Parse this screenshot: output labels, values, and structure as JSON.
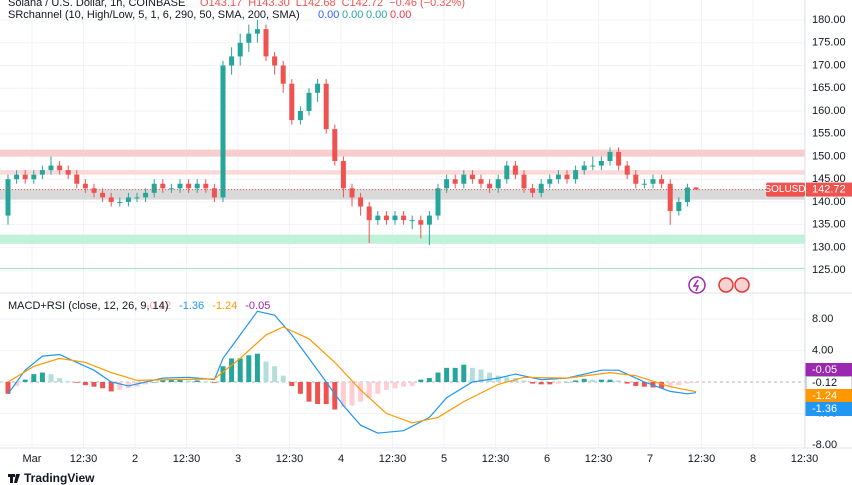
{
  "chart_data": {
    "type": "candlestick",
    "title": "Solana / U.S. Dollar, 1h, COINBASE",
    "ohlc_text": [
      "O143.17",
      "H143.30",
      "L142.68",
      "C142.72",
      "−0.46 (−0.32%)"
    ],
    "indicator": "SRchannel (10, High/Low, 5, 1, 6, 290, 50, SMA, 200, SMA)",
    "indicator_values": [
      {
        "value": 0,
        "label": "0.00",
        "color": "#2962ff"
      },
      {
        "value": 0,
        "label": "0.00",
        "color": "#26a69a"
      },
      {
        "value": 0,
        "label": "0.00",
        "color": "#26a69a"
      },
      {
        "value": 0,
        "label": "0.00",
        "color": "#f23645"
      }
    ],
    "symbol": "SOLUSD",
    "last_price": 142.72,
    "up_color": "#26a69a",
    "down_color": "#ef5350",
    "open": [
      137,
      145,
      146,
      145,
      146,
      147,
      148,
      147,
      146,
      144,
      143,
      142,
      141,
      140,
      140,
      141,
      141,
      142,
      144,
      143,
      143,
      144,
      143,
      144,
      143,
      141,
      170,
      172,
      175,
      177,
      178,
      172,
      170,
      166,
      158,
      160,
      164,
      166,
      156,
      149,
      143,
      141,
      139,
      136,
      137,
      136,
      137,
      136,
      136,
      135,
      137,
      143,
      145,
      144,
      146,
      145,
      144,
      143,
      145,
      148,
      146,
      143,
      142,
      144,
      145,
      146,
      145,
      147,
      148,
      148,
      149,
      151,
      148,
      146,
      144,
      144,
      145,
      144,
      138,
      140,
      143.17
    ],
    "high": [
      146,
      147,
      147,
      147,
      148,
      150,
      149,
      148,
      147,
      145,
      144,
      143,
      142,
      141,
      142,
      142,
      143,
      145,
      145,
      144,
      145,
      145,
      145,
      145,
      144,
      171,
      174,
      177,
      179,
      180,
      179,
      173,
      171,
      167,
      161,
      165,
      167,
      167,
      157,
      150,
      144,
      142,
      140,
      138,
      138,
      138,
      138,
      137,
      137,
      138,
      144,
      146,
      146,
      147,
      147,
      146,
      145,
      146,
      149,
      149,
      147,
      144,
      145,
      146,
      147,
      147,
      148,
      149,
      150,
      150,
      152,
      152,
      149,
      147,
      145,
      146,
      146,
      145,
      141,
      144,
      143.3
    ],
    "low": [
      135,
      144,
      144,
      144,
      145,
      146,
      146,
      145,
      143,
      142,
      141,
      140,
      139,
      139,
      139,
      140,
      140,
      141,
      142,
      142,
      142,
      142,
      142,
      142,
      140,
      140,
      168,
      170,
      173,
      175,
      171,
      168,
      164,
      157,
      157,
      159,
      162,
      155,
      148,
      141,
      139,
      137,
      131,
      135,
      135,
      135,
      135,
      134,
      132,
      130.5,
      136,
      142,
      143,
      143,
      144,
      143,
      142,
      142,
      144,
      145,
      142,
      141,
      141,
      143,
      144,
      144,
      144,
      146,
      147,
      147,
      148,
      147,
      145,
      143,
      143,
      143,
      143,
      135,
      137,
      139,
      142.68
    ],
    "close": [
      145,
      146,
      145,
      146,
      147,
      148,
      147,
      146,
      144,
      143,
      142,
      141,
      140,
      140,
      141,
      141,
      142,
      144,
      143,
      143,
      144,
      143,
      144,
      143,
      141,
      170,
      172,
      175,
      177,
      178,
      172,
      170,
      166,
      158,
      160,
      164,
      166,
      156,
      149,
      143,
      141,
      139,
      136,
      137,
      136,
      137,
      136,
      136,
      135,
      137,
      143,
      145,
      144,
      146,
      145,
      144,
      143,
      145,
      148,
      146,
      143,
      142,
      144,
      145,
      146,
      145,
      147,
      148,
      148,
      149,
      151,
      148,
      146,
      144,
      144,
      145,
      144,
      138,
      140,
      143.17,
      142.72
    ],
    "zones": [
      {
        "from": 150,
        "to": 151.5,
        "color": "#f9cdcd"
      },
      {
        "from": 146,
        "to": 147,
        "color": "#fbd9d9"
      },
      {
        "from": 140.5,
        "to": 142.8,
        "color": "#d9d9d9"
      },
      {
        "from": 130.8,
        "to": 132.8,
        "color": "#bff2d9"
      },
      {
        "from": 125.3,
        "to": 125.5,
        "color": "#9de6c2"
      }
    ],
    "ylim": [
      120.2,
      184.4
    ],
    "yticks": [
      {
        "value": 180,
        "label": "180.00"
      },
      {
        "value": 175,
        "label": "175.00"
      },
      {
        "value": 170,
        "label": "170.00"
      },
      {
        "value": 165,
        "label": "165.00"
      },
      {
        "value": 160,
        "label": "160.00"
      },
      {
        "value": 155,
        "label": "155.00"
      },
      {
        "value": 150,
        "label": "150.00"
      },
      {
        "value": 145,
        "label": "145.00"
      },
      {
        "value": 140,
        "label": "140.00"
      },
      {
        "value": 135,
        "label": "135.00"
      },
      {
        "value": 130,
        "label": "130.00"
      },
      {
        "value": 125,
        "label": "125.00"
      }
    ],
    "xticks": [
      "Mar",
      "12:30",
      "2",
      "12:30",
      "3",
      "12:30",
      "4",
      "12:30",
      "5",
      "12:30",
      "6",
      "12:30",
      "7",
      "12:30",
      "8",
      "12:30"
    ],
    "grid": true,
    "macd": {
      "title": "MACD+RSI (close, 12, 26, 9, 14)",
      "header_values": [
        {
          "value": -0.12,
          "color": "#f4a7a7"
        },
        {
          "value": -1.36,
          "color": "#2196f3"
        },
        {
          "value": -1.24,
          "color": "#ff9800"
        },
        {
          "value": -0.05,
          "color": "#9c27b0"
        }
      ],
      "histogram": [
        -1.5,
        -0.5,
        0.3,
        1.0,
        1.2,
        1.0,
        0.5,
        0.1,
        -0.1,
        -0.4,
        -0.6,
        -0.8,
        -1.2,
        -1.0,
        -0.8,
        -0.6,
        -0.3,
        0,
        0.2,
        0.3,
        0.3,
        0.2,
        0.2,
        0.1,
        -0.1,
        2.0,
        3.0,
        3.0,
        3.4,
        3.6,
        2.6,
        2.0,
        0.8,
        -0.5,
        -1.5,
        -2.5,
        -2.8,
        -2.8,
        -3.5,
        -3.2,
        -3.0,
        -2.5,
        -2.0,
        -1.5,
        -1.0,
        -0.8,
        -0.6,
        -0.5,
        0.3,
        0.5,
        1.2,
        1.8,
        1.8,
        2.2,
        1.8,
        1.6,
        1.2,
        0.8,
        0.6,
        0.5,
        0.2,
        -0.2,
        -0.3,
        -0.3,
        -0.2,
        0,
        0.2,
        0.4,
        0.3,
        0.3,
        0.3,
        0.2,
        -0.2,
        -0.5,
        -0.6,
        -0.7,
        -0.8,
        -0.6,
        -0.4,
        -0.2,
        -0.12
      ],
      "series": [
        {
          "name": "MACD",
          "color": "#2196f3",
          "x": [
            0,
            2,
            4,
            6,
            8,
            10,
            12,
            14,
            16,
            18,
            21,
            24,
            25,
            27,
            29,
            31,
            33,
            35,
            37,
            39,
            41,
            43,
            46,
            49,
            51,
            54,
            57,
            59,
            62,
            65,
            69,
            71,
            74,
            77,
            79,
            80
          ],
          "values": [
            -1.5,
            1.5,
            3.3,
            3.5,
            2.5,
            1.5,
            0,
            -0.5,
            0,
            0.5,
            0.6,
            0.3,
            3,
            6,
            9,
            8.5,
            6,
            3,
            0,
            -3,
            -5.5,
            -6.5,
            -6.2,
            -4.5,
            -2,
            0,
            0.5,
            1,
            0.3,
            0.5,
            1.5,
            1.5,
            0,
            -1.2,
            -1.5,
            -1.36
          ]
        },
        {
          "name": "Signal",
          "color": "#ff9800",
          "x": [
            0,
            3,
            6,
            9,
            12,
            15,
            19,
            24,
            27,
            30,
            32,
            35,
            38,
            41,
            44,
            47,
            50,
            53,
            57,
            60,
            65,
            70,
            73,
            77,
            80
          ],
          "values": [
            0,
            2,
            3,
            2.5,
            1.2,
            0.2,
            0.3,
            0.4,
            3,
            6,
            7,
            5.5,
            2.5,
            -1,
            -4,
            -5.2,
            -4.5,
            -2.5,
            -0.3,
            0.6,
            0.5,
            1.2,
            0.8,
            -0.6,
            -1.24
          ]
        }
      ],
      "last_labels": [
        {
          "value": -0.05,
          "color": "#9c27b0"
        },
        {
          "value": -0.12,
          "color": "#ffffff"
        },
        {
          "value": -1.24,
          "color": "#ff9800"
        },
        {
          "value": -1.36,
          "color": "#2196f3"
        }
      ],
      "ylim": [
        -8.4,
        11.2
      ],
      "yticks": [
        {
          "value": 8,
          "label": "8.00"
        },
        {
          "value": 4,
          "label": "4.00"
        },
        {
          "value": -4,
          "label": "-4.00"
        },
        {
          "value": -8,
          "label": "-8.00"
        }
      ]
    },
    "footer": "TradingView"
  }
}
